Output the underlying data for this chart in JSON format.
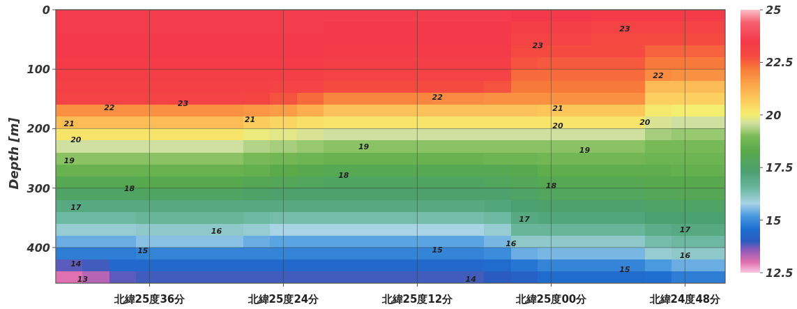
{
  "chart_data": {
    "type": "heatmap",
    "ylabel": "Depth [m]",
    "categories": [
      null,
      null,
      null,
      "北緯25度36分",
      null,
      null,
      null,
      null,
      "北緯25度24分",
      null,
      null,
      null,
      null,
      "北緯25度12分",
      null,
      null,
      null,
      null,
      "北緯25度00分",
      null,
      null,
      null,
      null,
      "北緯24度48分",
      null
    ],
    "ylim": [
      460,
      0
    ],
    "yticks": [
      0,
      100,
      200,
      300,
      400
    ],
    "grid": true,
    "clim": [
      12.5,
      25
    ],
    "cticks": [
      12.5,
      15,
      17.5,
      20,
      22.5,
      25
    ],
    "cells": [
      [
        23.6,
        23.6,
        23.6,
        23.6,
        23.6,
        23.6,
        23.6,
        23.6,
        23.6,
        23.6,
        23.6,
        23.6,
        23.6,
        23.6,
        23.6,
        23.6,
        23.6,
        23.5,
        23.5,
        23.5,
        23.4,
        23.4,
        23.4,
        23.4,
        23.4
      ],
      [
        23.6,
        23.6,
        23.6,
        23.6,
        23.6,
        23.6,
        23.6,
        23.6,
        23.6,
        23.6,
        23.5,
        23.5,
        23.5,
        23.5,
        23.5,
        23.5,
        23.5,
        23.3,
        23.3,
        23.3,
        23.1,
        23.1,
        23.1,
        23.1,
        23.1
      ],
      [
        23.5,
        23.5,
        23.5,
        23.5,
        23.5,
        23.5,
        23.5,
        23.5,
        23.5,
        23.5,
        23.5,
        23.5,
        23.5,
        23.5,
        23.5,
        23.5,
        23.5,
        23.1,
        23.1,
        23.1,
        22.9,
        22.9,
        22.8,
        22.8,
        22.8
      ],
      [
        23.5,
        23.5,
        23.5,
        23.5,
        23.5,
        23.5,
        23.5,
        23.5,
        23.5,
        23.5,
        23.4,
        23.4,
        23.4,
        23.4,
        23.4,
        23.4,
        23.4,
        22.9,
        22.8,
        22.8,
        22.8,
        22.8,
        22.5,
        22.5,
        22.5
      ],
      [
        23.4,
        23.4,
        23.4,
        23.4,
        23.4,
        23.4,
        23.4,
        23.4,
        23.4,
        23.4,
        23.3,
        23.3,
        23.3,
        23.3,
        23.3,
        23.3,
        23.3,
        22.7,
        22.6,
        22.6,
        22.6,
        22.6,
        22.2,
        22.2,
        22.2
      ],
      [
        23.3,
        23.3,
        23.3,
        23.3,
        23.3,
        23.3,
        23.3,
        23.3,
        23.3,
        23.3,
        23.1,
        23.1,
        23.1,
        23.1,
        23.1,
        23.1,
        23.1,
        22.4,
        22.4,
        22.4,
        22.4,
        22.4,
        21.9,
        21.8,
        21.8
      ],
      [
        23.2,
        23.2,
        23.2,
        23.2,
        23.2,
        23.2,
        23.2,
        23.2,
        23.1,
        23.1,
        22.8,
        22.8,
        22.8,
        22.8,
        22.8,
        22.8,
        22.7,
        22.2,
        22.2,
        22.2,
        22.2,
        22.2,
        21.0,
        21.0,
        21.0
      ],
      [
        23.1,
        23.1,
        23.1,
        23.1,
        23.1,
        23.1,
        23.1,
        23.0,
        22.7,
        22.4,
        22.0,
        22.0,
        22.0,
        22.0,
        21.9,
        21.9,
        21.8,
        21.8,
        21.8,
        21.8,
        21.8,
        21.8,
        20.6,
        20.6,
        20.6
      ],
      [
        21.8,
        21.8,
        21.8,
        21.8,
        21.8,
        21.8,
        21.8,
        21.7,
        21.6,
        21.3,
        20.9,
        20.9,
        20.9,
        20.9,
        20.9,
        20.9,
        20.9,
        20.9,
        20.8,
        20.8,
        20.8,
        20.8,
        20.1,
        20.0,
        20.0
      ],
      [
        21.0,
        21.0,
        21.0,
        21.0,
        21.0,
        21.0,
        21.0,
        20.7,
        20.5,
        20.3,
        20.2,
        20.2,
        20.2,
        20.2,
        20.2,
        20.2,
        20.2,
        20.2,
        20.2,
        20.2,
        20.2,
        20.2,
        19.7,
        19.6,
        19.6
      ],
      [
        20.2,
        20.2,
        20.2,
        20.2,
        20.2,
        20.2,
        20.2,
        19.9,
        19.8,
        19.7,
        19.6,
        19.6,
        19.6,
        19.6,
        19.6,
        19.6,
        19.6,
        19.6,
        19.6,
        19.6,
        19.6,
        19.6,
        19.3,
        19.2,
        19.2
      ],
      [
        19.6,
        19.6,
        19.6,
        19.6,
        19.6,
        19.6,
        19.6,
        19.4,
        19.3,
        19.2,
        19.1,
        19.1,
        19.1,
        19.1,
        19.1,
        19.1,
        19.1,
        19.1,
        19.1,
        19.1,
        19.1,
        19.1,
        18.9,
        18.9,
        18.9
      ],
      [
        19.1,
        19.1,
        19.1,
        19.1,
        19.1,
        19.1,
        19.1,
        18.9,
        18.8,
        18.7,
        18.6,
        18.6,
        18.6,
        18.6,
        18.6,
        18.6,
        18.7,
        18.7,
        18.8,
        18.8,
        18.8,
        18.8,
        18.7,
        18.7,
        18.7
      ],
      [
        18.6,
        18.6,
        18.6,
        18.6,
        18.6,
        18.6,
        18.6,
        18.5,
        18.3,
        18.2,
        18.1,
        18.1,
        18.1,
        18.1,
        18.1,
        18.1,
        18.1,
        18.2,
        18.4,
        18.4,
        18.4,
        18.4,
        18.4,
        18.5,
        18.5
      ],
      [
        18.1,
        18.1,
        18.1,
        18.2,
        18.2,
        18.2,
        18.2,
        18.0,
        17.9,
        17.8,
        17.7,
        17.7,
        17.7,
        17.7,
        17.7,
        17.7,
        17.8,
        17.9,
        18.1,
        18.1,
        18.1,
        18.1,
        18.2,
        18.2,
        18.2
      ],
      [
        17.6,
        17.6,
        17.6,
        17.7,
        17.7,
        17.7,
        17.7,
        17.5,
        17.4,
        17.4,
        17.4,
        17.4,
        17.4,
        17.4,
        17.4,
        17.4,
        17.4,
        17.6,
        17.8,
        17.8,
        17.8,
        17.8,
        17.9,
        18.0,
        18.0
      ],
      [
        17.0,
        17.0,
        17.0,
        17.0,
        17.0,
        17.0,
        17.0,
        17.0,
        17.0,
        17.0,
        17.0,
        17.0,
        17.0,
        17.0,
        17.0,
        17.0,
        17.1,
        17.3,
        17.4,
        17.4,
        17.4,
        17.4,
        17.6,
        17.6,
        17.6
      ],
      [
        16.5,
        16.5,
        16.5,
        16.6,
        16.6,
        16.6,
        16.6,
        16.5,
        16.4,
        16.4,
        16.4,
        16.4,
        16.4,
        16.4,
        16.4,
        16.4,
        16.5,
        17.0,
        17.1,
        17.1,
        17.1,
        17.1,
        17.3,
        17.3,
        17.3
      ],
      [
        16.0,
        16.0,
        16.0,
        16.1,
        16.1,
        16.1,
        16.1,
        16.0,
        15.8,
        15.8,
        15.8,
        15.8,
        15.8,
        15.8,
        15.8,
        15.8,
        16.0,
        16.6,
        16.6,
        16.6,
        16.6,
        16.6,
        16.9,
        17.0,
        17.0
      ],
      [
        15.4,
        15.4,
        15.4,
        15.6,
        15.6,
        15.6,
        15.6,
        15.4,
        15.3,
        15.3,
        15.3,
        15.3,
        15.3,
        15.3,
        15.3,
        15.3,
        15.5,
        16.1,
        16.1,
        16.1,
        16.1,
        16.1,
        16.4,
        16.5,
        16.5
      ],
      [
        14.8,
        14.8,
        14.8,
        14.9,
        14.9,
        14.9,
        14.9,
        14.9,
        14.9,
        14.9,
        14.9,
        14.9,
        14.9,
        14.9,
        14.9,
        14.9,
        15.0,
        15.4,
        15.5,
        15.5,
        15.5,
        15.5,
        16.0,
        16.1,
        16.1
      ],
      [
        13.8,
        13.9,
        14.4,
        14.4,
        14.4,
        14.4,
        14.4,
        14.4,
        14.4,
        14.4,
        14.4,
        14.4,
        14.4,
        14.4,
        14.4,
        14.4,
        14.5,
        14.7,
        14.9,
        14.9,
        14.9,
        14.9,
        15.2,
        15.4,
        15.4
      ],
      [
        13.0,
        13.3,
        13.8,
        13.9,
        13.9,
        13.9,
        13.9,
        13.9,
        13.9,
        13.9,
        13.9,
        13.9,
        13.9,
        13.9,
        13.9,
        13.9,
        14.0,
        14.2,
        14.5,
        14.5,
        14.5,
        14.5,
        14.6,
        14.8,
        14.8
      ]
    ],
    "annotations": [
      "23",
      "22",
      "21",
      "21",
      "20",
      "19",
      "18",
      "17",
      "16",
      "15",
      "14",
      "13",
      "19",
      "18",
      "22",
      "15",
      "14",
      "17",
      "16",
      "23",
      "23",
      "21",
      "20",
      "19",
      "18",
      "22",
      "20",
      "17",
      "16",
      "15"
    ]
  }
}
